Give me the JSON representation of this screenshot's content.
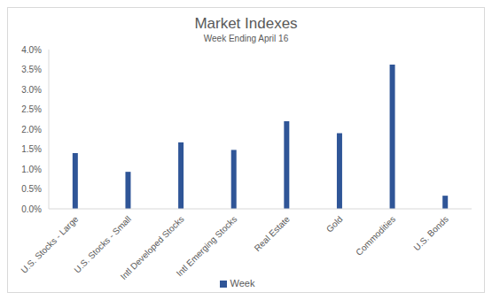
{
  "chart_data": {
    "type": "bar",
    "title": "Market Indexes",
    "subtitle": "Week Ending April 16",
    "categories": [
      "U.S. Stocks - Large",
      "U.S. Stocks - Small",
      "Intl Developed Stocks",
      "Intl Emerging Stocks",
      "Real Estate",
      "Gold",
      "Commodities",
      "U.S. Bonds"
    ],
    "series": [
      {
        "name": "Week",
        "color": "#2f5597",
        "values": [
          1.4,
          0.93,
          1.67,
          1.48,
          2.2,
          1.9,
          3.62,
          0.33
        ]
      }
    ],
    "ylim": [
      0,
      4
    ],
    "yticks": [
      {
        "value": 0,
        "label": "0.0%"
      },
      {
        "value": 0.5,
        "label": "0.5%"
      },
      {
        "value": 1,
        "label": "1.0%"
      },
      {
        "value": 1.5,
        "label": "1.5%"
      },
      {
        "value": 2,
        "label": "2.0%"
      },
      {
        "value": 2.5,
        "label": "2.5%"
      },
      {
        "value": 3,
        "label": "3.0%"
      },
      {
        "value": 3.5,
        "label": "3.5%"
      },
      {
        "value": 4,
        "label": "4.0%"
      }
    ],
    "grid": false,
    "legend": "bottom"
  }
}
